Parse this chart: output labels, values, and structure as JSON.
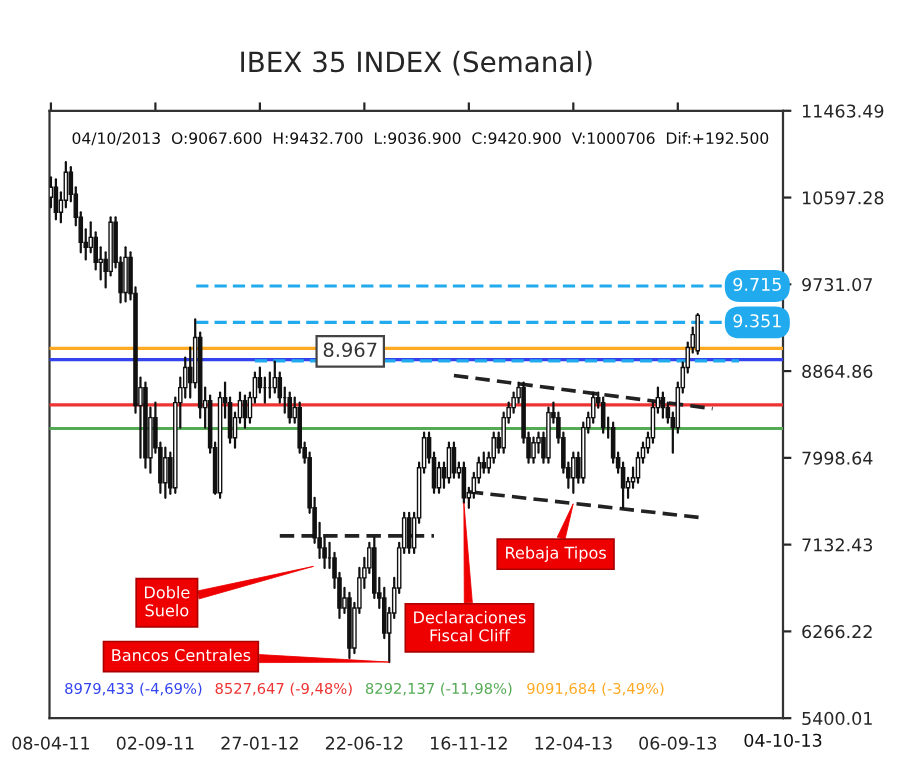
{
  "chart_data": {
    "type": "candlestick",
    "title": "IBEX 35 INDEX (Semanal)",
    "color": "#111111",
    "x": [
      "2011-04-08",
      "2011-04-15",
      "2011-04-22",
      "2011-04-29",
      "2011-05-06",
      "2011-05-13",
      "2011-05-20",
      "2011-05-27",
      "2011-06-03",
      "2011-06-10",
      "2011-06-17",
      "2011-06-24",
      "2011-07-01",
      "2011-07-08",
      "2011-07-15",
      "2011-07-22",
      "2011-07-29",
      "2011-08-05",
      "2011-08-12",
      "2011-08-19",
      "2011-08-26",
      "2011-09-02",
      "2011-09-09",
      "2011-09-16",
      "2011-09-23",
      "2011-09-30",
      "2011-10-07",
      "2011-10-14",
      "2011-10-21",
      "2011-10-28",
      "2011-11-04",
      "2011-11-11",
      "2011-11-18",
      "2011-11-25",
      "2011-12-02",
      "2011-12-09",
      "2011-12-16",
      "2011-12-23",
      "2011-12-30",
      "2012-01-06",
      "2012-01-13",
      "2012-01-20",
      "2012-01-27",
      "2012-02-03",
      "2012-02-10",
      "2012-02-17",
      "2012-02-24",
      "2012-03-02",
      "2012-03-09",
      "2012-03-16",
      "2012-03-23",
      "2012-03-30",
      "2012-04-06",
      "2012-04-13",
      "2012-04-20",
      "2012-04-27",
      "2012-05-04",
      "2012-05-11",
      "2012-05-18",
      "2012-05-25",
      "2012-06-01",
      "2012-06-08",
      "2012-06-15",
      "2012-06-22",
      "2012-06-29",
      "2012-07-06",
      "2012-07-13",
      "2012-07-20",
      "2012-07-27",
      "2012-08-03",
      "2012-08-10",
      "2012-08-17",
      "2012-08-24",
      "2012-08-31",
      "2012-09-07",
      "2012-09-14",
      "2012-09-21",
      "2012-09-28",
      "2012-10-05",
      "2012-10-12",
      "2012-10-19",
      "2012-10-26",
      "2012-11-02",
      "2012-11-09",
      "2012-11-16",
      "2012-11-23",
      "2012-11-30",
      "2012-12-07",
      "2012-12-14",
      "2012-12-21",
      "2012-12-28",
      "2013-01-04",
      "2013-01-11",
      "2013-01-18",
      "2013-01-25",
      "2013-02-01",
      "2013-02-08",
      "2013-02-15",
      "2013-02-22",
      "2013-03-01",
      "2013-03-08",
      "2013-03-15",
      "2013-03-22",
      "2013-03-29",
      "2013-04-05",
      "2013-04-12",
      "2013-04-19",
      "2013-04-26",
      "2013-05-03",
      "2013-05-10",
      "2013-05-17",
      "2013-05-24",
      "2013-05-31",
      "2013-06-07",
      "2013-06-14",
      "2013-06-21",
      "2013-06-28",
      "2013-07-05",
      "2013-07-12",
      "2013-07-19",
      "2013-07-26",
      "2013-08-02",
      "2013-08-09",
      "2013-08-16",
      "2013-08-23",
      "2013-08-30",
      "2013-09-06",
      "2013-09-13",
      "2013-09-20",
      "2013-09-27",
      "2013-10-04"
    ],
    "ohlc": [
      [
        10600,
        10800,
        10500,
        10700
      ],
      [
        10700,
        10780,
        10380,
        10450
      ],
      [
        10450,
        10650,
        10350,
        10570
      ],
      [
        10570,
        10950,
        10500,
        10850
      ],
      [
        10850,
        10900,
        10560,
        10630
      ],
      [
        10630,
        10700,
        10320,
        10400
      ],
      [
        10400,
        10450,
        10050,
        10150
      ],
      [
        10150,
        10280,
        9980,
        10100
      ],
      [
        10100,
        10350,
        10050,
        10200
      ],
      [
        10200,
        10250,
        9880,
        9950
      ],
      [
        9950,
        10100,
        9780,
        9980
      ],
      [
        9980,
        10050,
        9700,
        9860
      ],
      [
        9860,
        10400,
        9820,
        10350
      ],
      [
        10350,
        10400,
        9900,
        9950
      ],
      [
        9950,
        10000,
        9550,
        9650
      ],
      [
        9650,
        10100,
        9560,
        10000
      ],
      [
        10000,
        10050,
        9580,
        9640
      ],
      [
        9640,
        9700,
        8450,
        8520
      ],
      [
        8520,
        8800,
        8000,
        8700
      ],
      [
        8700,
        8750,
        7900,
        8000
      ],
      [
        8000,
        8500,
        7850,
        8400
      ],
      [
        8400,
        8550,
        8050,
        8100
      ],
      [
        8100,
        8150,
        7650,
        7750
      ],
      [
        7750,
        8100,
        7600,
        8000
      ],
      [
        8000,
        8050,
        7640,
        7700
      ],
      [
        7700,
        8600,
        7650,
        8550
      ],
      [
        8550,
        8800,
        8300,
        8700
      ],
      [
        8700,
        9000,
        8600,
        8900
      ],
      [
        8900,
        9100,
        8600,
        8750
      ],
      [
        8750,
        9380,
        8700,
        9200
      ],
      [
        9200,
        9250,
        8400,
        8500
      ],
      [
        8500,
        8700,
        8300,
        8570
      ],
      [
        8570,
        8620,
        8050,
        8100
      ],
      [
        8100,
        8150,
        7640,
        7650
      ],
      [
        7650,
        8650,
        7600,
        8600
      ],
      [
        8600,
        8750,
        8400,
        8550
      ],
      [
        8550,
        8600,
        8150,
        8200
      ],
      [
        8200,
        8450,
        8100,
        8400
      ],
      [
        8400,
        8650,
        8350,
        8570
      ],
      [
        8570,
        8620,
        8300,
        8400
      ],
      [
        8400,
        8650,
        8350,
        8600
      ],
      [
        8600,
        8850,
        8550,
        8800
      ],
      [
        8800,
        8900,
        8650,
        8700
      ],
      [
        8700,
        8800,
        8550,
        8700
      ],
      [
        8700,
        8850,
        8600,
        8700
      ],
      [
        8700,
        8960,
        8650,
        8800
      ],
      [
        8800,
        8850,
        8550,
        8600
      ],
      [
        8600,
        8700,
        8450,
        8600
      ],
      [
        8600,
        8650,
        8350,
        8400
      ],
      [
        8400,
        8600,
        8350,
        8500
      ],
      [
        8500,
        8550,
        8050,
        8100
      ],
      [
        8100,
        8150,
        7950,
        8000
      ],
      [
        8000,
        8050,
        7450,
        7500
      ],
      [
        7500,
        7600,
        7150,
        7200
      ],
      [
        7200,
        7350,
        7000,
        7100
      ],
      [
        7100,
        7200,
        6900,
        7000
      ],
      [
        7000,
        7150,
        6900,
        7000
      ],
      [
        7000,
        7050,
        6700,
        6800
      ],
      [
        6800,
        6850,
        6400,
        6500
      ],
      [
        6500,
        6700,
        6450,
        6600
      ],
      [
        6600,
        6650,
        6000,
        6100
      ],
      [
        6100,
        6550,
        6050,
        6500
      ],
      [
        6500,
        6900,
        6450,
        6800
      ],
      [
        6800,
        7000,
        6700,
        6900
      ],
      [
        6900,
        7150,
        6850,
        7100
      ],
      [
        7100,
        7200,
        6600,
        6650
      ],
      [
        6650,
        6800,
        6500,
        6600
      ],
      [
        6600,
        6700,
        6200,
        6250
      ],
      [
        6250,
        6500,
        5960,
        6450
      ],
      [
        6450,
        6800,
        6400,
        6700
      ],
      [
        6700,
        7150,
        6650,
        7100
      ],
      [
        7100,
        7450,
        7050,
        7400
      ],
      [
        7400,
        7450,
        7050,
        7100
      ],
      [
        7100,
        7450,
        7050,
        7400
      ],
      [
        7400,
        7950,
        7350,
        7900
      ],
      [
        7900,
        8250,
        7850,
        8200
      ],
      [
        8200,
        8250,
        7950,
        8000
      ],
      [
        8000,
        8050,
        7650,
        7700
      ],
      [
        7700,
        7950,
        7650,
        7900
      ],
      [
        7900,
        7950,
        7700,
        7800
      ],
      [
        7800,
        8150,
        7750,
        8100
      ],
      [
        8100,
        8150,
        7800,
        7850
      ],
      [
        7850,
        7950,
        7800,
        7900
      ],
      [
        7900,
        7950,
        7550,
        7600
      ],
      [
        7600,
        7700,
        7500,
        7650
      ],
      [
        7650,
        7850,
        7600,
        7800
      ],
      [
        7800,
        8000,
        7750,
        7950
      ],
      [
        7950,
        8050,
        7850,
        7900
      ],
      [
        7900,
        8050,
        7850,
        8000
      ],
      [
        8000,
        8250,
        7950,
        8200
      ],
      [
        8200,
        8250,
        8050,
        8100
      ],
      [
        8100,
        8450,
        8050,
        8400
      ],
      [
        8400,
        8550,
        8350,
        8500
      ],
      [
        8500,
        8650,
        8450,
        8600
      ],
      [
        8600,
        8750,
        8550,
        8700
      ],
      [
        8700,
        8750,
        8150,
        8200
      ],
      [
        8200,
        8250,
        7950,
        8000
      ],
      [
        8000,
        8200,
        7950,
        8150
      ],
      [
        8150,
        8250,
        8050,
        8200
      ],
      [
        8200,
        8250,
        7950,
        8000
      ],
      [
        8000,
        8500,
        7950,
        8450
      ],
      [
        8450,
        8550,
        8350,
        8400
      ],
      [
        8400,
        8450,
        8150,
        8200
      ],
      [
        8200,
        8250,
        7850,
        7900
      ],
      [
        7900,
        7950,
        7700,
        7800
      ],
      [
        7800,
        8050,
        7650,
        8000
      ],
      [
        8000,
        8050,
        7750,
        7800
      ],
      [
        7800,
        8350,
        7750,
        8300
      ],
      [
        8300,
        8450,
        8250,
        8400
      ],
      [
        8400,
        8650,
        8350,
        8600
      ],
      [
        8600,
        8650,
        8500,
        8550
      ],
      [
        8550,
        8600,
        8250,
        8300
      ],
      [
        8300,
        8400,
        8200,
        8300
      ],
      [
        8300,
        8350,
        7950,
        8000
      ],
      [
        8000,
        8050,
        7850,
        7900
      ],
      [
        7900,
        7950,
        7500,
        7700
      ],
      [
        7700,
        7800,
        7600,
        7760
      ],
      [
        7760,
        7900,
        7700,
        7800
      ],
      [
        7800,
        8050,
        7750,
        8000
      ],
      [
        8000,
        8150,
        7950,
        8100
      ],
      [
        8100,
        8250,
        8050,
        8200
      ],
      [
        8200,
        8550,
        8150,
        8500
      ],
      [
        8500,
        8700,
        8450,
        8600
      ],
      [
        8600,
        8650,
        8400,
        8500
      ],
      [
        8500,
        8550,
        8350,
        8400
      ],
      [
        8400,
        8450,
        8050,
        8300
      ],
      [
        8300,
        8750,
        8250,
        8700
      ],
      [
        8700,
        8950,
        8650,
        8900
      ],
      [
        8900,
        9150,
        8850,
        9100
      ],
      [
        9100,
        9300,
        9050,
        9228.4
      ],
      [
        9067.6,
        9432.7,
        9036.9,
        9420.9
      ]
    ],
    "series": [
      {
        "type": "line",
        "color": "#222222",
        "line_style": "dashed",
        "x": [
          "2012-02-24",
          "2012-09-28"
        ],
        "values": [
          7220,
          7220
        ]
      },
      {
        "type": "line",
        "color": "#222222",
        "line_style": "dashed",
        "x": [
          "2012-10-26",
          "2013-10-25"
        ],
        "values": [
          8820,
          8490
        ]
      },
      {
        "type": "line",
        "color": "#222222",
        "line_style": "dashed",
        "x": [
          "2012-11-16",
          "2013-10-11"
        ],
        "values": [
          7660,
          7400
        ]
      }
    ],
    "ref_lines": [
      {
        "axis": "y",
        "value": 8979.433,
        "color": "#3344ee"
      },
      {
        "axis": "y",
        "value": 8527.647,
        "color": "#ee3333"
      },
      {
        "axis": "y",
        "value": 8292.137,
        "color": "#55aa55"
      },
      {
        "axis": "y",
        "value": 9091.684,
        "color": "#ffaa22"
      },
      {
        "axis": "y",
        "value": 9715,
        "color": "#22aaee",
        "line_style": "dashed"
      },
      {
        "axis": "y",
        "value": 9351,
        "color": "#22aaee",
        "line_style": "dashed"
      },
      {
        "axis": "y",
        "value": 8967,
        "color": "#22aaee",
        "line_style": "dashed"
      }
    ],
    "annotations": [
      "04/10/2013  O:9067.600  H:9432.700  L:9036.900  C:9420.900  V:1000706  Dif:+192.500",
      "04-10-13",
      "Doble\nSuelo",
      "8979,433 (-4,69%)",
      "8527,647 (-9,48%)",
      "8292,137 (-11,98%)",
      "9091,684 (-3,49%)",
      "9.715",
      "9.351",
      "8.967",
      "Rebaja Tipos",
      {
        "text": "Bancos Centrales",
        "x": "2012-07-27",
        "y": 5960
      },
      {
        "text": "Declaraciones\nFiscal Cliff",
        "x": "2012-11-09",
        "y": 7550
      }
    ],
    "xlim": [
      "2011-04-06",
      "2014-02-01"
    ],
    "xticks": [
      {
        "value": "2011-04-08",
        "label": "08-04-11"
      },
      {
        "value": "2011-09-02",
        "label": "02-09-11"
      },
      {
        "value": "2012-01-27",
        "label": "27-01-12"
      },
      {
        "value": "2012-06-22",
        "label": "22-06-12"
      },
      {
        "value": "2012-11-16",
        "label": "16-11-12"
      },
      {
        "value": "2013-04-12",
        "label": "12-04-13"
      },
      {
        "value": "2013-09-06",
        "label": "06-09-13"
      }
    ],
    "ylim": [
      5400.01,
      11463.49
    ],
    "yticks": [
      5400.01,
      6266.22,
      7132.43,
      7998.64,
      8864.86,
      9731.07,
      10597.28,
      11463.49
    ]
  }
}
